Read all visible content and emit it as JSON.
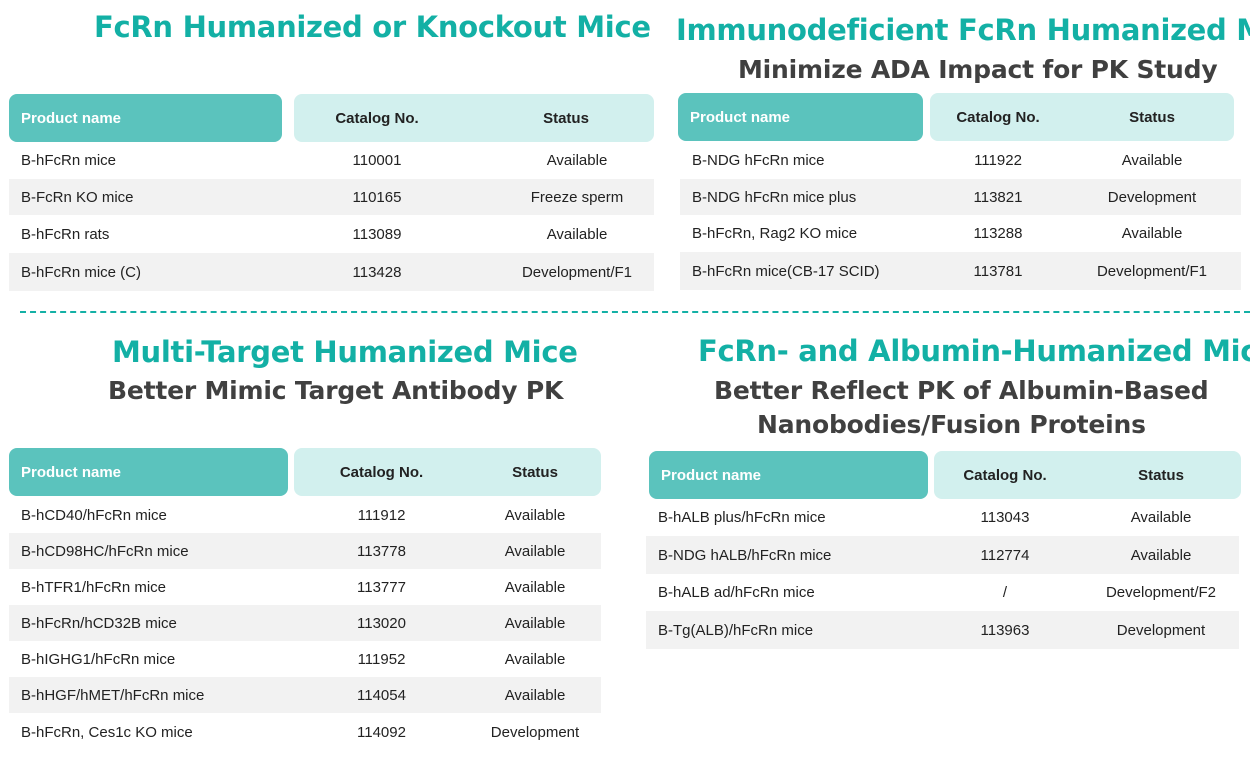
{
  "headers": {
    "product": "Product name",
    "catalog": "Catalog No.",
    "status": "Status"
  },
  "s1": {
    "title": "FcRn Humanized or Knockout Mice",
    "rows": [
      [
        "B-hFcRn mice",
        "110001",
        "Available"
      ],
      [
        "B-FcRn KO mice",
        "110165",
        "Freeze sperm"
      ],
      [
        "B-hFcRn rats",
        "113089",
        "Available"
      ],
      [
        "B-hFcRn mice (C)",
        "113428",
        "Development/F1"
      ]
    ]
  },
  "s2": {
    "title": "Immunodeficient FcRn Humanized Mice",
    "subtitle": "Minimize ADA Impact for PK Study",
    "rows": [
      [
        "B-NDG hFcRn mice",
        "111922",
        "Available"
      ],
      [
        "B-NDG hFcRn mice plus",
        "113821",
        "Development"
      ],
      [
        "B-hFcRn, Rag2 KO mice",
        "113288",
        "Available"
      ],
      [
        "B-hFcRn mice(CB-17 SCID)",
        "113781",
        "Development/F1"
      ]
    ]
  },
  "s3": {
    "title": "Multi-Target Humanized Mice",
    "subtitle": "Better Mimic Target Antibody PK",
    "rows": [
      [
        "B-hCD40/hFcRn mice",
        "111912",
        "Available"
      ],
      [
        "B-hCD98HC/hFcRn mice",
        "113778",
        "Available"
      ],
      [
        "B-hTFR1/hFcRn mice",
        "113777",
        "Available"
      ],
      [
        "B-hFcRn/hCD32B mice",
        "113020",
        "Available"
      ],
      [
        "B-hIGHG1/hFcRn mice",
        "111952",
        "Available"
      ],
      [
        "B-hHGF/hMET/hFcRn mice",
        "114054",
        "Available"
      ],
      [
        "B-hFcRn, Ces1c KO mice",
        "114092",
        "Development"
      ]
    ]
  },
  "s4": {
    "title": "FcRn- and Albumin-Humanized Mice",
    "subtitle_line1": "Better Reflect PK of Albumin-Based",
    "subtitle_line2": "Nanobodies/Fusion Proteins",
    "rows": [
      [
        "B-hALB plus/hFcRn mice",
        "113043",
        "Available"
      ],
      [
        "B-NDG hALB/hFcRn mice",
        "112774",
        "Available"
      ],
      [
        "B-hALB ad/hFcRn mice",
        "/",
        "Development/F2"
      ],
      [
        "B-Tg(ALB)/hFcRn mice",
        "113963",
        "Development"
      ]
    ]
  }
}
